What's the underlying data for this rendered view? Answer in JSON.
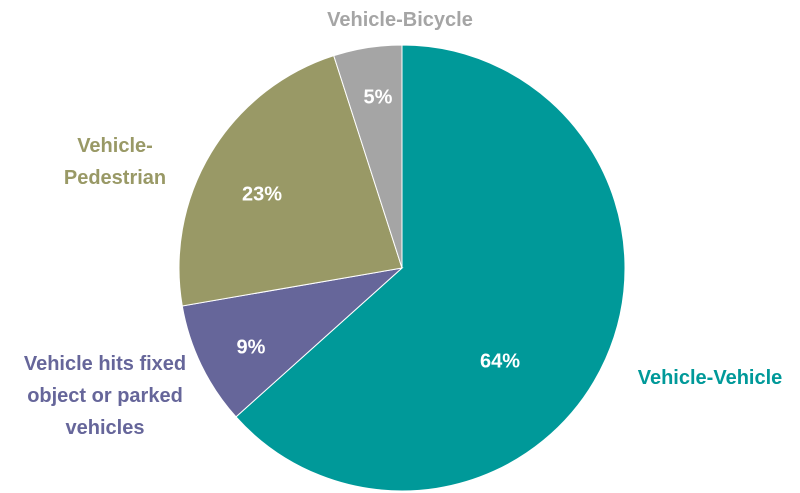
{
  "chart_data": {
    "type": "pie",
    "categories": [
      "Vehicle-Vehicle",
      "Vehicle hits fixed object or parked vehicles",
      "Vehicle-Pedestrian",
      "Vehicle-Bicycle"
    ],
    "values": [
      64,
      9,
      23,
      5
    ],
    "value_labels": [
      "64%",
      "9%",
      "23%",
      "5%"
    ],
    "colors": [
      "#009999",
      "#66669a",
      "#999966",
      "#a5a5a5"
    ]
  }
}
